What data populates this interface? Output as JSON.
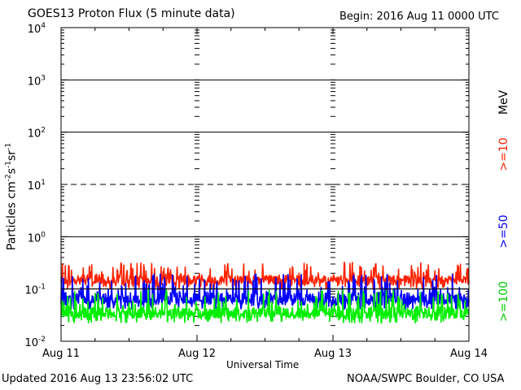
{
  "header": {
    "title": "GOES13 Proton Flux (5 minute data)",
    "begin": "Begin: 2016 Aug 11 0000 UTC"
  },
  "footer": {
    "updated": "Updated 2016 Aug 13 23:56:02 UTC",
    "credit": "NOAA/SWPC Boulder, CO USA"
  },
  "chart_data": {
    "type": "line",
    "title": "GOES13 Proton Flux (5 minute data)",
    "xlabel": "Universal Time",
    "ylabel_parts": [
      "Particles cm",
      "-2",
      "s",
      "-1",
      "sr",
      "-1"
    ],
    "x_ticks": [
      "Aug 11",
      "Aug 12",
      "Aug 13",
      "Aug 14"
    ],
    "y_scale": "log",
    "y_exponents": [
      -2,
      -1,
      0,
      1,
      2,
      3,
      4
    ],
    "ylim": [
      0.01,
      10000
    ],
    "xlim_days": [
      0,
      3
    ],
    "unit_label": "MeV",
    "series": [
      {
        "name": ">=10",
        "color": "#ff2200",
        "baseline": 0.15,
        "low": 0.1,
        "high": 0.33
      },
      {
        "name": ">=50",
        "color": "#0000ff",
        "baseline": 0.065,
        "low": 0.04,
        "high": 0.2
      },
      {
        "name": ">=100",
        "color": "#00ee00",
        "baseline": 0.035,
        "low": 0.022,
        "high": 0.1
      }
    ]
  }
}
